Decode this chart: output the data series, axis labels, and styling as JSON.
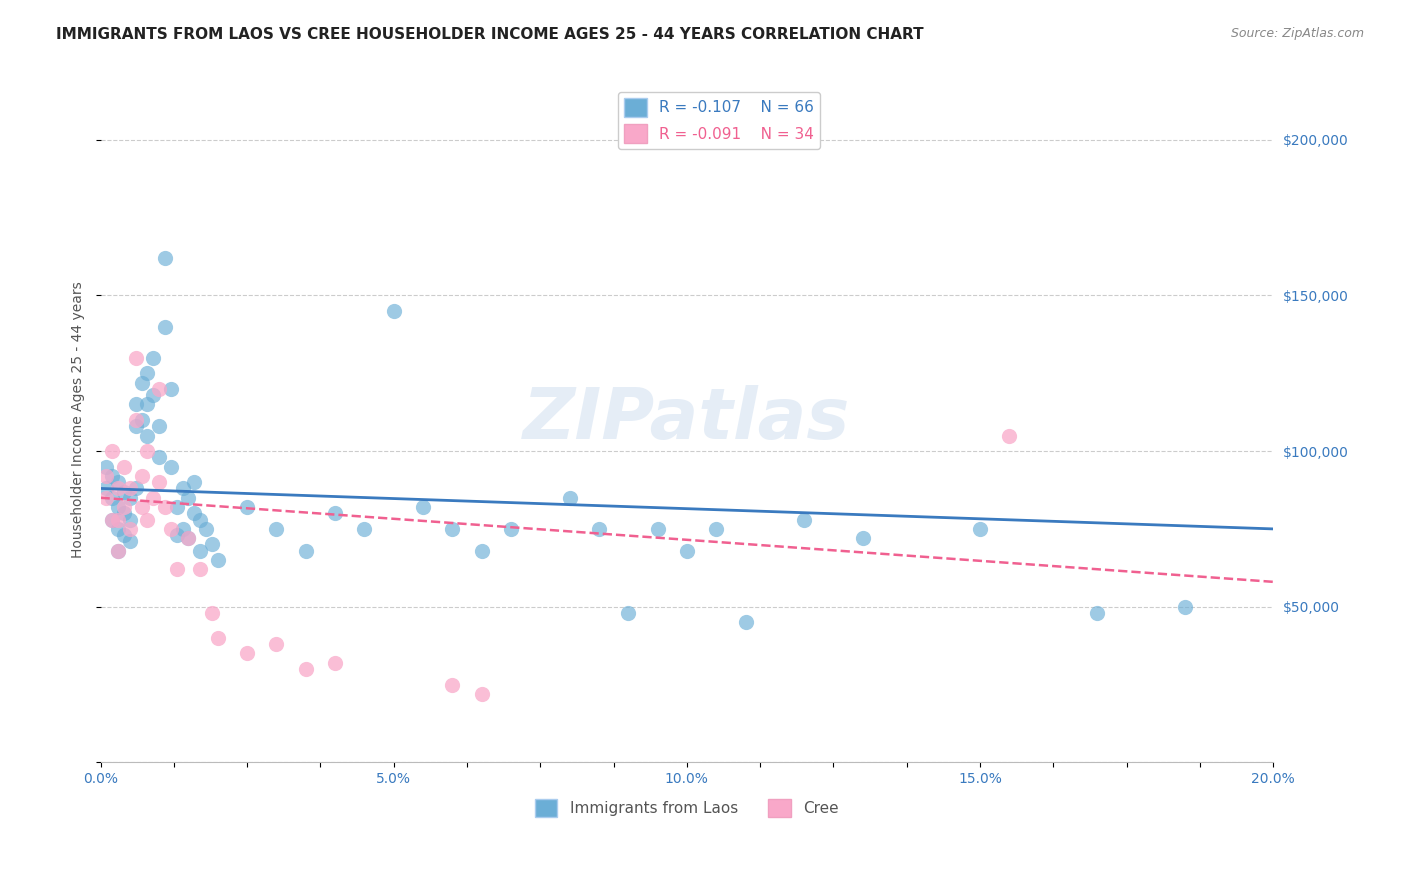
{
  "title": "IMMIGRANTS FROM LAOS VS CREE HOUSEHOLDER INCOME AGES 25 - 44 YEARS CORRELATION CHART",
  "source": "Source: ZipAtlas.com",
  "xlabel_bottom": "",
  "ylabel": "Householder Income Ages 25 - 44 years",
  "xlim": [
    0.0,
    0.2
  ],
  "ylim": [
    0,
    220000
  ],
  "xtick_labels": [
    "0.0%",
    "",
    "",
    "",
    "5.0%",
    "",
    "",
    "",
    "10.0%",
    "",
    "",
    "",
    "15.0%",
    "",
    "",
    "",
    "20.0%"
  ],
  "ytick_right_labels": [
    "$50,000",
    "$100,000",
    "$150,000",
    "$200,000"
  ],
  "ytick_right_values": [
    50000,
    100000,
    150000,
    200000
  ],
  "grid_color": "#cccccc",
  "background_color": "#ffffff",
  "blue_color": "#6baed6",
  "pink_color": "#f9a8c9",
  "blue_line_color": "#3a7abf",
  "pink_line_color": "#f06090",
  "legend_R_blue": "R = -0.107",
  "legend_N_blue": "N = 66",
  "legend_R_pink": "R = -0.091",
  "legend_N_pink": "N = 34",
  "legend_label_blue": "Immigrants from Laos",
  "legend_label_pink": "Cree",
  "watermark": "ZIPatlas",
  "blue_scatter_x": [
    0.001,
    0.001,
    0.002,
    0.002,
    0.002,
    0.003,
    0.003,
    0.003,
    0.003,
    0.004,
    0.004,
    0.004,
    0.005,
    0.005,
    0.005,
    0.006,
    0.006,
    0.006,
    0.007,
    0.007,
    0.008,
    0.008,
    0.008,
    0.009,
    0.009,
    0.01,
    0.01,
    0.011,
    0.011,
    0.012,
    0.012,
    0.013,
    0.013,
    0.014,
    0.014,
    0.015,
    0.015,
    0.016,
    0.016,
    0.017,
    0.017,
    0.018,
    0.019,
    0.02,
    0.025,
    0.03,
    0.035,
    0.04,
    0.045,
    0.05,
    0.055,
    0.06,
    0.065,
    0.07,
    0.08,
    0.085,
    0.09,
    0.095,
    0.1,
    0.105,
    0.11,
    0.12,
    0.13,
    0.15,
    0.17,
    0.185
  ],
  "blue_scatter_y": [
    95000,
    88000,
    92000,
    85000,
    78000,
    90000,
    82000,
    75000,
    68000,
    87000,
    80000,
    73000,
    85000,
    78000,
    71000,
    115000,
    108000,
    88000,
    122000,
    110000,
    125000,
    115000,
    105000,
    130000,
    118000,
    108000,
    98000,
    162000,
    140000,
    120000,
    95000,
    82000,
    73000,
    88000,
    75000,
    85000,
    72000,
    90000,
    80000,
    78000,
    68000,
    75000,
    70000,
    65000,
    82000,
    75000,
    68000,
    80000,
    75000,
    145000,
    82000,
    75000,
    68000,
    75000,
    85000,
    75000,
    48000,
    75000,
    68000,
    75000,
    45000,
    78000,
    72000,
    75000,
    48000,
    50000
  ],
  "pink_scatter_x": [
    0.001,
    0.001,
    0.002,
    0.002,
    0.003,
    0.003,
    0.003,
    0.004,
    0.004,
    0.005,
    0.005,
    0.006,
    0.006,
    0.007,
    0.007,
    0.008,
    0.008,
    0.009,
    0.01,
    0.01,
    0.011,
    0.012,
    0.013,
    0.015,
    0.017,
    0.019,
    0.02,
    0.025,
    0.03,
    0.035,
    0.04,
    0.06,
    0.065,
    0.155
  ],
  "pink_scatter_y": [
    92000,
    85000,
    100000,
    78000,
    88000,
    78000,
    68000,
    95000,
    82000,
    88000,
    75000,
    130000,
    110000,
    92000,
    82000,
    100000,
    78000,
    85000,
    120000,
    90000,
    82000,
    75000,
    62000,
    72000,
    62000,
    48000,
    40000,
    35000,
    38000,
    30000,
    32000,
    25000,
    22000,
    105000
  ],
  "blue_trend_x": [
    0.0,
    0.2
  ],
  "blue_trend_y": [
    88000,
    75000
  ],
  "pink_trend_x": [
    0.0,
    0.2
  ],
  "pink_trend_y": [
    85000,
    58000
  ],
  "title_fontsize": 11,
  "axis_label_fontsize": 10,
  "tick_fontsize": 10,
  "legend_fontsize": 11
}
